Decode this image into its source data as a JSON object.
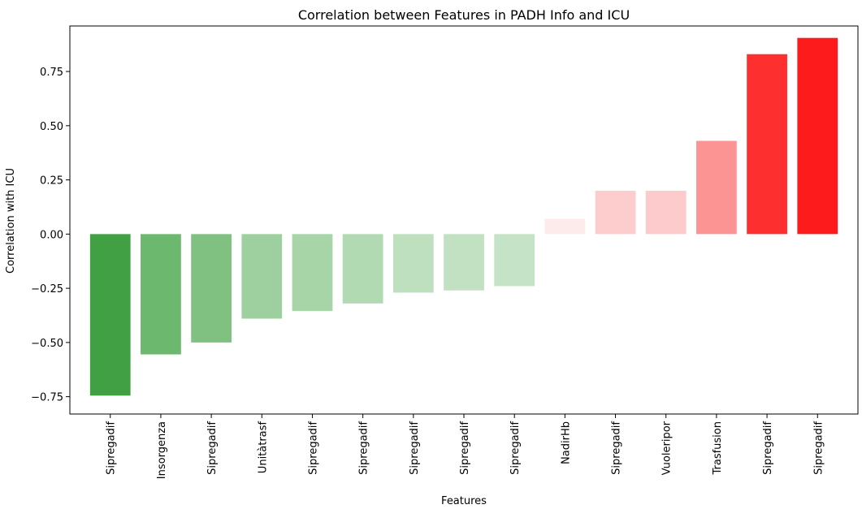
{
  "chart_data": {
    "type": "bar",
    "title": "Correlation between Features in PADH Info and ICU",
    "xlabel": "Features",
    "ylabel": "Correlation with ICU",
    "ylim": [
      -0.83,
      0.96
    ],
    "yticks": [
      -0.75,
      -0.5,
      -0.25,
      0.0,
      0.25,
      0.5,
      0.75
    ],
    "ytick_labels": [
      "−0.75",
      "−0.50",
      "−0.25",
      "0.00",
      "0.25",
      "0.50",
      "0.75"
    ],
    "grid": false,
    "categories": [
      "Sipregadif",
      "Insorgenza",
      "Sipregadif",
      "Unitàtrasf",
      "Sipregadif",
      "Sipregadif",
      "Sipregadif",
      "Sipregadif",
      "Sipregadif",
      "NadirHb",
      "Sipregadif",
      "Vuoleripor",
      "Trasfusion",
      "Sipregadif",
      "Sipregadif"
    ],
    "values": [
      -0.745,
      -0.555,
      -0.5,
      -0.39,
      -0.355,
      -0.32,
      -0.27,
      -0.26,
      -0.24,
      0.07,
      0.2,
      0.2,
      0.43,
      0.83,
      0.905
    ],
    "colors": [
      "#41a043",
      "#6db86f",
      "#80c182",
      "#9dd09e",
      "#a7d5a8",
      "#b1d9b2",
      "#bfe0bf",
      "#c1e1c2",
      "#c5e3c6",
      "#fdeaea",
      "#fdcccc",
      "#fdcbcb",
      "#fd9494",
      "#fd2f2f",
      "#fd1b1b"
    ]
  }
}
